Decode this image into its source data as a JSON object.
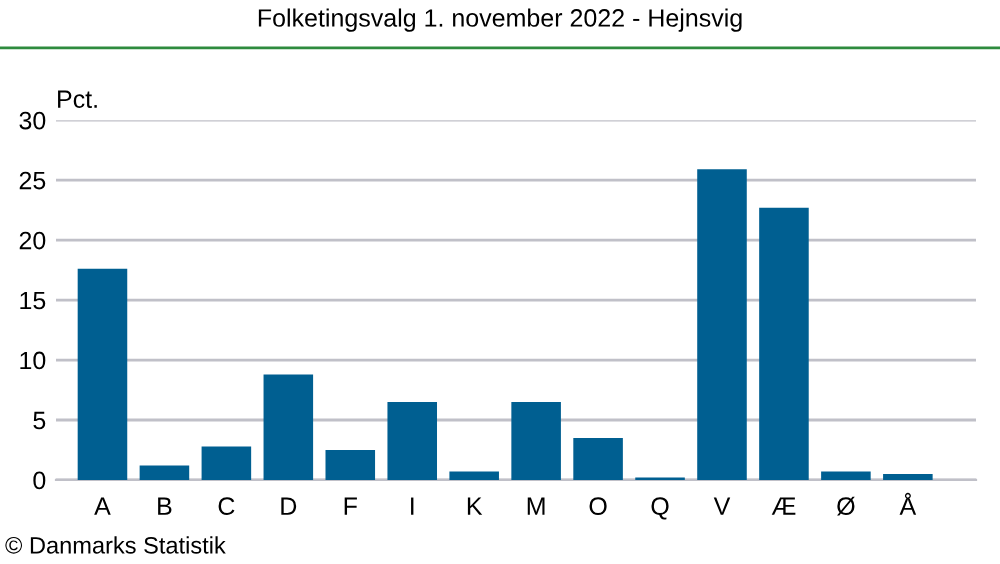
{
  "chart_data": {
    "type": "bar",
    "title": "Folketingsvalg 1. november 2022 - Hejnsvig",
    "ylabel": "Pct.",
    "categories": [
      "A",
      "B",
      "C",
      "D",
      "F",
      "I",
      "K",
      "M",
      "O",
      "Q",
      "V",
      "Æ",
      "Ø",
      "Å"
    ],
    "values": [
      17.6,
      1.2,
      2.8,
      8.8,
      2.5,
      6.5,
      0.7,
      6.5,
      3.5,
      0.2,
      25.9,
      22.7,
      0.7,
      0.5
    ],
    "color": "#005f91",
    "ylim": [
      0,
      30
    ],
    "yticks": [
      0,
      5,
      10,
      15,
      20,
      25,
      30
    ],
    "grid": "y",
    "annotations": [
      "© Danmarks Statistik"
    ]
  }
}
